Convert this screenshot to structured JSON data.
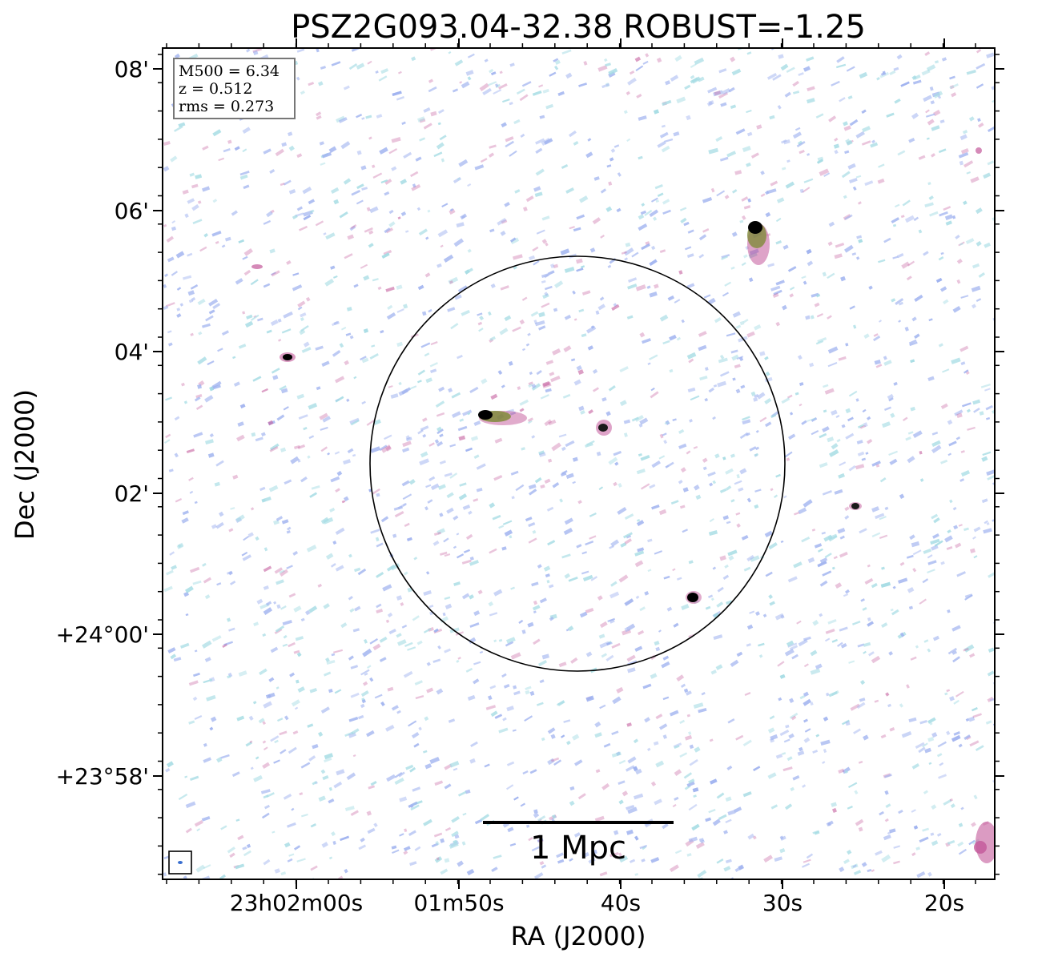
{
  "figure": {
    "title": "PSZ2G093.04-32.38 ROBUST=-1.25",
    "xlabel": "RA (J2000)",
    "ylabel": "Dec (J2000)",
    "x_ticks": [
      "23h02m00s",
      "01m50s",
      "40s",
      "30s",
      "20s"
    ],
    "y_ticks": [
      "08'",
      "06'",
      "04'",
      "02'",
      "+24°00'",
      "+23°58'"
    ],
    "info_box": {
      "line1": "M500 = 6.34",
      "line2": "z = 0.512",
      "line3": "rms = 0.273"
    },
    "scale_bar_label": "1 Mpc",
    "colors": {
      "noise_blue": "#9fb2ef",
      "noise_cyan": "#a6dce4",
      "emission_magenta": "#c3589a",
      "emission_green": "#7f8a3a",
      "source_core": "#000000",
      "frame": "#000000"
    }
  }
}
